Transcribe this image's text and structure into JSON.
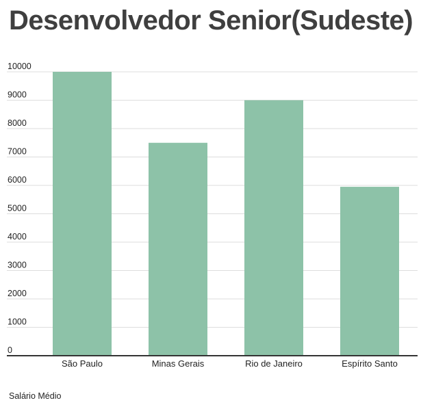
{
  "header": {
    "title": "Desenvolvedor Senior(Sudeste)"
  },
  "footer": {
    "legend_label": "Salário Médio"
  },
  "colors": {
    "bar": "#8dc2a8",
    "gridline": "#dddddd",
    "baseline": "#333333",
    "title": "#3f3f3f"
  },
  "chart_data": {
    "type": "bar",
    "title": "Desenvolvedor Senior(Sudeste)",
    "categories": [
      "São Paulo",
      "Minas Gerais",
      "Rio de Janeiro",
      "Espírito Santo"
    ],
    "series": [
      {
        "name": "Salário Médio",
        "values": [
          10000,
          7500,
          9000,
          5950
        ]
      }
    ],
    "ylim": [
      0,
      10000
    ],
    "yticks": [
      0,
      1000,
      2000,
      3000,
      4000,
      5000,
      6000,
      7000,
      8000,
      9000,
      10000
    ],
    "xlabel": "",
    "ylabel": "",
    "grid": true,
    "legend_position": "bottom-left"
  }
}
